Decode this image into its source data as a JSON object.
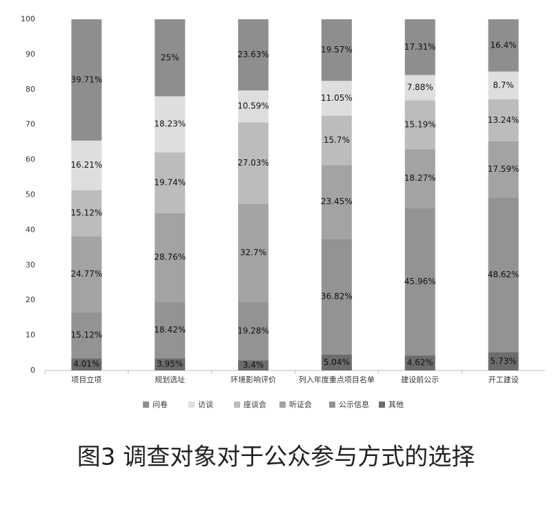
{
  "chart_data": {
    "type": "bar",
    "stacking": "percent",
    "title": "图3 调查对象对于公众参与方式的选择",
    "categories": [
      "项目立项",
      "规划选址",
      "环境影响评价",
      "列入年度重点项目名单",
      "建设前公示",
      "开工建设"
    ],
    "series": [
      {
        "name": "问卷",
        "color": "#8e8e8e",
        "values": [
          39.71,
          25,
          23.63,
          19.57,
          17.31,
          16.4
        ],
        "value_labels": [
          "39.71%",
          "25%",
          "23.63%",
          "19.57%",
          "17.31%",
          "16.4%"
        ]
      },
      {
        "name": "访谈",
        "color": "#dedede",
        "values": [
          16.21,
          18.23,
          10.59,
          11.05,
          7.88,
          8.7
        ],
        "value_labels": [
          "16.21%",
          "18.23%",
          "10.59%",
          "11.05%",
          "7.88%",
          "8.7%"
        ]
      },
      {
        "name": "座谈会",
        "color": "#bcbcbc",
        "values": [
          15.12,
          19.74,
          27.03,
          15.7,
          15.19,
          13.24
        ],
        "value_labels": [
          "15.12%",
          "19.74%",
          "27.03%",
          "15.7%",
          "15.19%",
          "13.24%"
        ]
      },
      {
        "name": "听证会",
        "color": "#a3a3a3",
        "values": [
          24.77,
          28.76,
          32.7,
          23.45,
          18.27,
          17.59
        ],
        "value_labels": [
          "24.77%",
          "28.76%",
          "32.7%",
          "23.45%",
          "18.27%",
          "17.59%"
        ]
      },
      {
        "name": "公示信息",
        "color": "#939393",
        "values": [
          15.12,
          18.42,
          19.28,
          36.82,
          45.96,
          48.62
        ],
        "value_labels": [
          "15.12%",
          "18.42%",
          "19.28%",
          "36.82%",
          "45.96%",
          "48.62%"
        ]
      },
      {
        "name": "其他",
        "color": "#6c6c6c",
        "values": [
          4.01,
          3.95,
          3.4,
          5.04,
          4.62,
          5.73
        ],
        "value_labels": [
          "4.01%",
          "3.95%",
          "3.4%",
          "5.04%",
          "4.62%",
          "5.73%"
        ]
      }
    ],
    "ylim": [
      0,
      100
    ],
    "yticks": [
      0,
      10,
      20,
      30,
      40,
      50,
      60,
      70,
      80,
      90,
      100
    ],
    "grid": false,
    "legend": "bottom"
  }
}
